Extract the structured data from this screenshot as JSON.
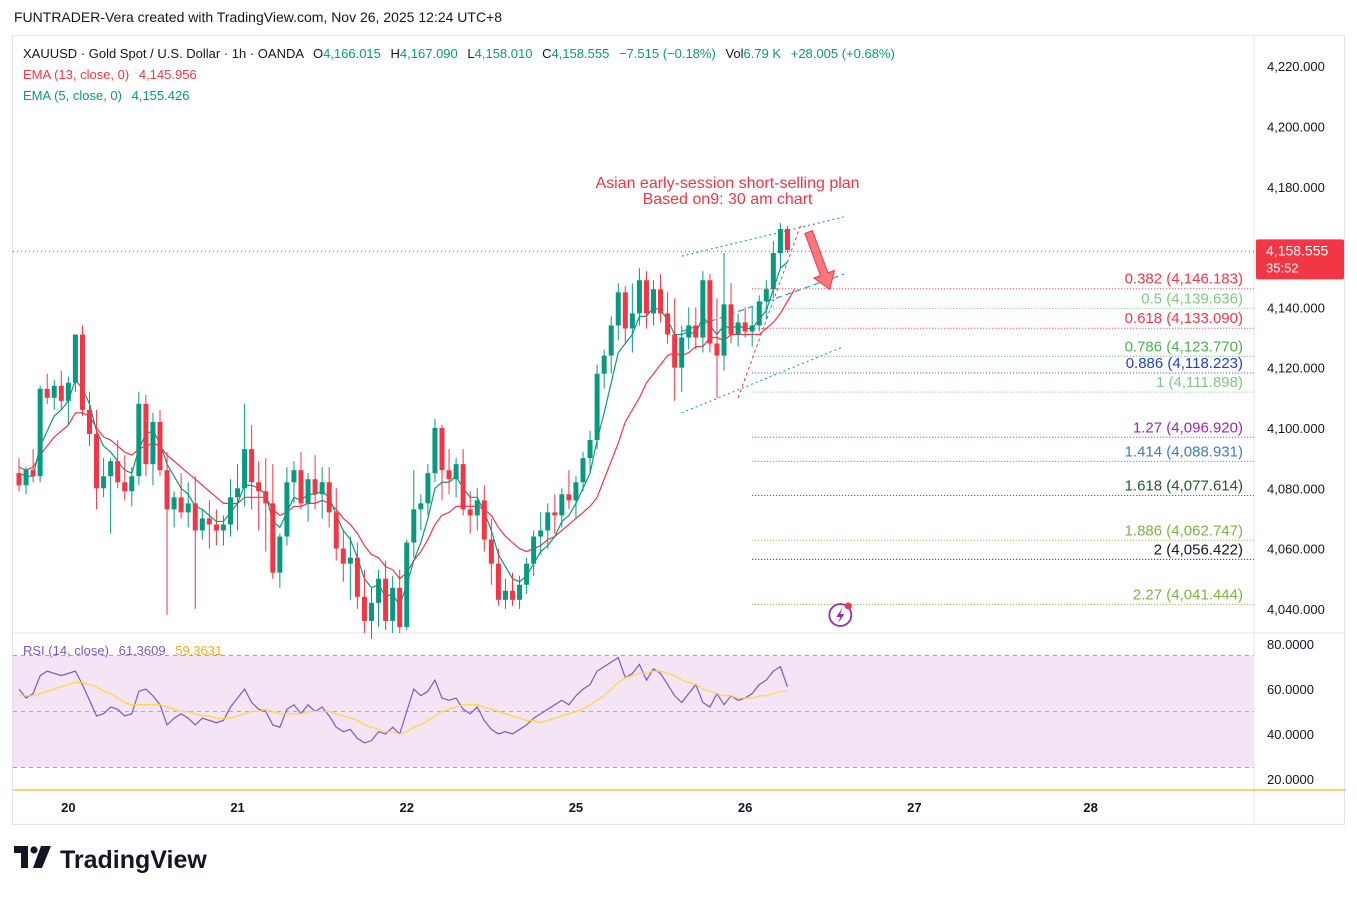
{
  "header": {
    "author_line": "FUNTRADER-Vera created with TradingView.com, Nov 26, 2025 12:24 UTC+8"
  },
  "symbol_bar": {
    "symbol": "XAUUSD · Gold Spot / U.S. Dollar · 1h · OANDA",
    "open_label": "O",
    "open": "4,166.015",
    "high_label": "H",
    "high": "4,167.090",
    "low_label": "L",
    "low": "4,158.010",
    "close_label": "C",
    "close": "4,158.555",
    "change": "−7.515 (−0.18%)",
    "vol_label": "Vol",
    "vol": "6.79 K",
    "vol_change": "+28.005 (+0.68%)"
  },
  "indicators": {
    "ema13_label": "EMA (13, close, 0)",
    "ema13_value": "4,145.956",
    "ema13_color": "#f23645",
    "ema5_label": "EMA (5, close, 0)",
    "ema5_value": "4,155.426",
    "ema5_color": "#089981",
    "rsi_label": "RSI (14, close)",
    "rsi_value": "61.3609",
    "rsi_ma_value": "59.3631",
    "rsi_color": "#7e57c2",
    "rsi_ma_color": "#fdd835"
  },
  "annotation": {
    "line1": "Asian early-session short-selling plan",
    "line2": "Based on9: 30 am chart",
    "color": "#f23645"
  },
  "price_tag": {
    "price": "4,158.555",
    "countdown": "35:52",
    "color": "#f23645"
  },
  "footer": {
    "brand": "TradingView"
  },
  "colors": {
    "up": "#089981",
    "down": "#f23645",
    "background": "#ffffff",
    "grid": "#e0e3eb",
    "rsi_band": "#f3e5f5"
  },
  "chart_data": {
    "type": "candlestick",
    "price_axis": {
      "ylim": [
        4032,
        4230
      ],
      "ticks": [
        "4,040.000",
        "4,060.000",
        "4,080.000",
        "4,100.000",
        "4,120.000",
        "4,140.000",
        "4,160.000",
        "4,180.000",
        "4,200.000",
        "4,220.000"
      ],
      "tick_values": [
        4040,
        4060,
        4080,
        4100,
        4120,
        4140,
        4160,
        4180,
        4200,
        4220
      ]
    },
    "time_axis": {
      "labels": [
        "20",
        "21",
        "22",
        "25",
        "26",
        "27",
        "28"
      ],
      "label_bar_index": [
        7,
        31,
        55,
        79,
        103,
        127,
        152
      ]
    },
    "bar_count_total": 175,
    "candles": [
      [
        4085,
        4090,
        4079,
        4081
      ],
      [
        4081,
        4087,
        4078,
        4086
      ],
      [
        4086,
        4093,
        4082,
        4084
      ],
      [
        4084,
        4114,
        4082,
        4113
      ],
      [
        4113,
        4118,
        4108,
        4110
      ],
      [
        4110,
        4116,
        4106,
        4114
      ],
      [
        4114,
        4119,
        4106,
        4109
      ],
      [
        4109,
        4117,
        4101,
        4115
      ],
      [
        4115,
        4131,
        4112,
        4131
      ],
      [
        4131,
        4134,
        4104,
        4106
      ],
      [
        4106,
        4112,
        4094,
        4098
      ],
      [
        4098,
        4106,
        4073,
        4080
      ],
      [
        4080,
        4090,
        4077,
        4084
      ],
      [
        4084,
        4090,
        4065,
        4089
      ],
      [
        4089,
        4096,
        4080,
        4082
      ],
      [
        4082,
        4091,
        4076,
        4079
      ],
      [
        4079,
        4087,
        4074,
        4084
      ],
      [
        4084,
        4112,
        4081,
        4108
      ],
      [
        4108,
        4111,
        4084,
        4088
      ],
      [
        4088,
        4105,
        4081,
        4102
      ],
      [
        4102,
        4106,
        4084,
        4086
      ],
      [
        4086,
        4092,
        4038,
        4073
      ],
      [
        4073,
        4079,
        4067,
        4077
      ],
      [
        4077,
        4085,
        4070,
        4072
      ],
      [
        4072,
        4082,
        4067,
        4075
      ],
      [
        4075,
        4084,
        4040,
        4066
      ],
      [
        4066,
        4073,
        4063,
        4070
      ],
      [
        4070,
        4076,
        4060,
        4068
      ],
      [
        4068,
        4073,
        4061,
        4066
      ],
      [
        4066,
        4071,
        4061,
        4068
      ],
      [
        4068,
        4083,
        4064,
        4077
      ],
      [
        4077,
        4088,
        4066,
        4080
      ],
      [
        4080,
        4108,
        4074,
        4093
      ],
      [
        4093,
        4101,
        4073,
        4082
      ],
      [
        4082,
        4089,
        4066,
        4079
      ],
      [
        4079,
        4090,
        4059,
        4075
      ],
      [
        4075,
        4088,
        4050,
        4052
      ],
      [
        4052,
        4065,
        4047,
        4064
      ],
      [
        4064,
        4087,
        4061,
        4082
      ],
      [
        4082,
        4089,
        4075,
        4086
      ],
      [
        4086,
        4092,
        4073,
        4075
      ],
      [
        4075,
        4085,
        4069,
        4083
      ],
      [
        4083,
        4091,
        4073,
        4078
      ],
      [
        4078,
        4087,
        4070,
        4082
      ],
      [
        4082,
        4087,
        4067,
        4072
      ],
      [
        4072,
        4080,
        4056,
        4060
      ],
      [
        4060,
        4066,
        4049,
        4055
      ],
      [
        4055,
        4064,
        4043,
        4057
      ],
      [
        4057,
        4062,
        4040,
        4044
      ],
      [
        4044,
        4053,
        4032,
        4036
      ],
      [
        4036,
        4047,
        4030,
        4042
      ],
      [
        4042,
        4053,
        4034,
        4050
      ],
      [
        4050,
        4056,
        4033,
        4036
      ],
      [
        4036,
        4051,
        4032,
        4047
      ],
      [
        4047,
        4053,
        4032,
        4034
      ],
      [
        4034,
        4063,
        4033,
        4062
      ],
      [
        4062,
        4086,
        4057,
        4073
      ],
      [
        4073,
        4078,
        4066,
        4075
      ],
      [
        4075,
        4088,
        4071,
        4085
      ],
      [
        4085,
        4103,
        4082,
        4100
      ],
      [
        4100,
        4101,
        4076,
        4086
      ],
      [
        4086,
        4093,
        4078,
        4083
      ],
      [
        4083,
        4090,
        4077,
        4088
      ],
      [
        4088,
        4093,
        4071,
        4073
      ],
      [
        4073,
        4079,
        4065,
        4071
      ],
      [
        4071,
        4080,
        4066,
        4076
      ],
      [
        4076,
        4081,
        4059,
        4063
      ],
      [
        4063,
        4070,
        4048,
        4055
      ],
      [
        4055,
        4060,
        4041,
        4043
      ],
      [
        4043,
        4050,
        4040,
        4046
      ],
      [
        4046,
        4052,
        4041,
        4043
      ],
      [
        4043,
        4051,
        4040,
        4048
      ],
      [
        4048,
        4057,
        4045,
        4055
      ],
      [
        4055,
        4066,
        4051,
        4064
      ],
      [
        4064,
        4072,
        4058,
        4066
      ],
      [
        4066,
        4075,
        4060,
        4072
      ],
      [
        4072,
        4078,
        4065,
        4071
      ],
      [
        4071,
        4080,
        4067,
        4078
      ],
      [
        4078,
        4086,
        4073,
        4076
      ],
      [
        4076,
        4084,
        4070,
        4082
      ],
      [
        4082,
        4092,
        4079,
        4090
      ],
      [
        4090,
        4099,
        4085,
        4096
      ],
      [
        4096,
        4121,
        4093,
        4118
      ],
      [
        4118,
        4126,
        4113,
        4124
      ],
      [
        4124,
        4137,
        4118,
        4134
      ],
      [
        4134,
        4148,
        4129,
        4145
      ],
      [
        4145,
        4147,
        4128,
        4133
      ],
      [
        4133,
        4148,
        4125,
        4138
      ],
      [
        4138,
        4153,
        4134,
        4149
      ],
      [
        4149,
        4152,
        4133,
        4138
      ],
      [
        4138,
        4149,
        4134,
        4146
      ],
      [
        4146,
        4151,
        4135,
        4138
      ],
      [
        4138,
        4145,
        4128,
        4131
      ],
      [
        4131,
        4143,
        4109,
        4120
      ],
      [
        4120,
        4134,
        4112,
        4130
      ],
      [
        4130,
        4140,
        4126,
        4134
      ],
      [
        4134,
        4140,
        4126,
        4130
      ],
      [
        4130,
        4152,
        4125,
        4149
      ],
      [
        4149,
        4151,
        4125,
        4128
      ],
      [
        4128,
        4143,
        4110,
        4124
      ],
      [
        4124,
        4158,
        4119,
        4141
      ],
      [
        4141,
        4148,
        4128,
        4131
      ],
      [
        4131,
        4138,
        4127,
        4135
      ],
      [
        4135,
        4140,
        4130,
        4132
      ],
      [
        4132,
        4140,
        4127,
        4134
      ],
      [
        4134,
        4144,
        4132,
        4142
      ],
      [
        4142,
        4149,
        4136,
        4146
      ],
      [
        4146,
        4162,
        4143,
        4158
      ],
      [
        4158,
        4168,
        4153,
        4166
      ],
      [
        4166,
        4167,
        4158,
        4159
      ]
    ],
    "ema13": [
      4087,
      4086,
      4087,
      4091,
      4094,
      4097,
      4099,
      4101,
      4105,
      4105,
      4104,
      4100,
      4097,
      4096,
      4094,
      4092,
      4091,
      4093,
      4094,
      4095,
      4094,
      4091,
      4089,
      4087,
      4085,
      4083,
      4081,
      4079,
      4077,
      4075,
      4075,
      4075,
      4077,
      4077,
      4077,
      4077,
      4073,
      4071,
      4072,
      4074,
      4074,
      4075,
      4075,
      4076,
      4075,
      4073,
      4070,
      4068,
      4065,
      4061,
      4058,
      4057,
      4054,
      4053,
      4050,
      4052,
      4056,
      4059,
      4063,
      4068,
      4071,
      4072,
      4074,
      4074,
      4074,
      4074,
      4073,
      4071,
      4067,
      4064,
      4062,
      4060,
      4059,
      4060,
      4061,
      4063,
      4064,
      4066,
      4068,
      4070,
      4072,
      4074,
      4077,
      4083,
      4089,
      4095,
      4102,
      4106,
      4110,
      4115,
      4118,
      4121,
      4124,
      4125,
      4124,
      4125,
      4127,
      4127,
      4130,
      4130,
      4129,
      4131,
      4131,
      4131,
      4131,
      4131,
      4133,
      4135,
      4138,
      4142,
      4146
    ],
    "ema5": [
      4085,
      4084,
      4084,
      4094,
      4099,
      4104,
      4106,
      4109,
      4116,
      4113,
      4108,
      4099,
      4094,
      4092,
      4089,
      4086,
      4085,
      4093,
      4098,
      4099,
      4095,
      4088,
      4084,
      4080,
      4078,
      4074,
      4073,
      4071,
      4069,
      4069,
      4072,
      4075,
      4081,
      4081,
      4080,
      4078,
      4069,
      4067,
      4072,
      4077,
      4076,
      4078,
      4078,
      4079,
      4077,
      4071,
      4066,
      4063,
      4057,
      4050,
      4047,
      4048,
      4044,
      4045,
      4041,
      4048,
      4056,
      4062,
      4070,
      4080,
      4082,
      4082,
      4084,
      4080,
      4077,
      4077,
      4072,
      4066,
      4058,
      4054,
      4050,
      4049,
      4051,
      4055,
      4059,
      4061,
      4064,
      4069,
      4071,
      4075,
      4080,
      4085,
      4096,
      4105,
      4115,
      4125,
      4128,
      4131,
      4137,
      4137,
      4140,
      4139,
      4136,
      4131,
      4131,
      4132,
      4131,
      4137,
      4134,
      4131,
      4134,
      4133,
      4134,
      4133,
      4133,
      4136,
      4139,
      4146,
      4153,
      4155
    ],
    "rsi": [
      60,
      56,
      58,
      66,
      68,
      67,
      66,
      67,
      68,
      62,
      55,
      48,
      49,
      52,
      51,
      48,
      49,
      59,
      60,
      57,
      53,
      44,
      47,
      49,
      47,
      44,
      47,
      46,
      45,
      46,
      52,
      56,
      60,
      54,
      51,
      50,
      44,
      43,
      51,
      53,
      49,
      53,
      50,
      52,
      48,
      43,
      41,
      42,
      38,
      36,
      37,
      41,
      40,
      43,
      40,
      50,
      60,
      57,
      59,
      64,
      56,
      55,
      56,
      51,
      49,
      52,
      46,
      42,
      40,
      41,
      40,
      42,
      44,
      47,
      49,
      51,
      53,
      55,
      53,
      57,
      60,
      62,
      68,
      70,
      72,
      74,
      65,
      67,
      71,
      64,
      69,
      67,
      62,
      57,
      54,
      58,
      62,
      54,
      52,
      58,
      53,
      57,
      55,
      56,
      58,
      62,
      64,
      68,
      70,
      61
    ],
    "rsi_ma": [
      57,
      57,
      57,
      58,
      59,
      60,
      61,
      62,
      63,
      63,
      62,
      61,
      59,
      58,
      56,
      54,
      53,
      53,
      53,
      53,
      53,
      52,
      51,
      50,
      50,
      49,
      48,
      48,
      47,
      47,
      47,
      48,
      49,
      50,
      50,
      51,
      50,
      49,
      49,
      49,
      49,
      50,
      50,
      50,
      50,
      49,
      48,
      47,
      46,
      44,
      43,
      42,
      41,
      41,
      40,
      41,
      43,
      44,
      46,
      48,
      50,
      51,
      52,
      53,
      53,
      53,
      52,
      51,
      50,
      49,
      48,
      47,
      46,
      46,
      45,
      46,
      47,
      48,
      49,
      50,
      51,
      53,
      55,
      57,
      60,
      63,
      65,
      66,
      67,
      67,
      68,
      68,
      67,
      66,
      64,
      63,
      62,
      60,
      59,
      58,
      57,
      57,
      56,
      56,
      56,
      57,
      57,
      58,
      59,
      59
    ],
    "rsi_axis": {
      "ylim": [
        15,
        85
      ],
      "ticks": [
        "20.0000",
        "40.0000",
        "60.0000",
        "80.0000"
      ],
      "tick_values": [
        20,
        40,
        60,
        80
      ],
      "band": [
        25,
        75
      ],
      "mid": 50
    },
    "fib_levels": [
      {
        "label": "0.382 (4,146.183)",
        "value": 4146.183,
        "color": "#f23645"
      },
      {
        "label": "0.5 (4,139.636)",
        "value": 4139.636,
        "color": "#81c784"
      },
      {
        "label": "0.618 (4,133.090)",
        "value": 4133.09,
        "color": "#f23645"
      },
      {
        "label": "0.786 (4,123.770)",
        "value": 4123.77,
        "color": "#4caf50"
      },
      {
        "label": "0.886 (4,118.223)",
        "value": 4118.223,
        "color": "#1e3fcf"
      },
      {
        "label": "1 (4,111.898)",
        "value": 4111.898,
        "color": "#81c784"
      },
      {
        "label": "1.27 (4,096.920)",
        "value": 4096.92,
        "color": "#9c27b0"
      },
      {
        "label": "1.414 (4,088.931)",
        "value": 4088.931,
        "color": "#3f7bbf"
      },
      {
        "label": "1.618 (4,077.614)",
        "value": 4077.614,
        "color": "#1b5e20"
      },
      {
        "label": "1.886 (4,062.747)",
        "value": 4062.747,
        "color": "#7cb342"
      },
      {
        "label": "2 (4,056.422)",
        "value": 4056.422,
        "color": "#131722"
      },
      {
        "label": "2.27 (4,041.444)",
        "value": 4041.444,
        "color": "#7cb342"
      }
    ],
    "channel": {
      "upper": [
        [
          94,
          4157
        ],
        [
          117,
          4170
        ]
      ],
      "middle": [
        [
          94,
          4132
        ],
        [
          117,
          4151
        ]
      ],
      "lower": [
        [
          94,
          4105
        ],
        [
          117,
          4127
        ]
      ]
    },
    "fib_anchor": [
      [
        102,
        4110
      ],
      [
        111,
        4168
      ]
    ],
    "arrow": {
      "from": [
        112,
        4165
      ],
      "to": [
        115,
        4146
      ]
    },
    "current_price": 4158.555
  }
}
